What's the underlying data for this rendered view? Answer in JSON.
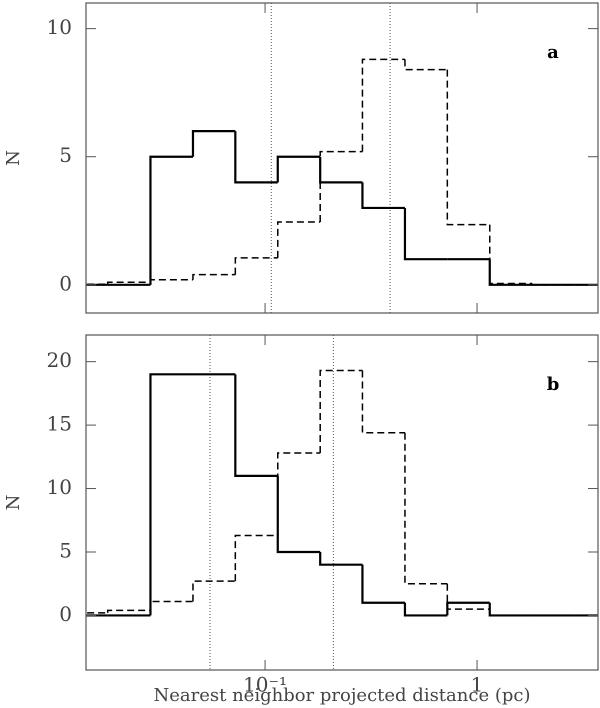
{
  "chart_data": [
    {
      "type": "histogram",
      "annotation": "a",
      "ylabel": "N",
      "log_x": true,
      "xtick_labels": false,
      "xlim": [
        0.0143,
        3.72
      ],
      "ylim": [
        -1.1,
        11
      ],
      "xticks": [
        0.1,
        1
      ],
      "yticks": [
        0,
        5,
        10
      ],
      "bins": [
        0.0114,
        0.0181,
        0.0288,
        0.0457,
        0.0724,
        0.1148,
        0.182,
        0.288,
        0.457,
        0.724,
        1.148,
        1.82,
        2.88,
        4.57
      ],
      "vlines": [
        0.107,
        0.389
      ],
      "series": [
        {
          "style": "solid",
          "color": "#000000",
          "values": [
            0,
            0,
            5,
            6,
            4,
            5,
            4,
            3,
            1,
            1,
            0,
            0,
            0
          ]
        },
        {
          "style": "dashed",
          "color": "#000000",
          "values": [
            0.02,
            0.1,
            0.2,
            0.4,
            1.05,
            2.45,
            5.2,
            8.8,
            8.4,
            2.35,
            0.05,
            0,
            0
          ]
        }
      ]
    },
    {
      "type": "histogram",
      "annotation": "b",
      "ylabel": "N",
      "xlabel": "Nearest neighbor projected distance (pc)",
      "log_x": true,
      "xtick_labels": true,
      "xlim": [
        0.0143,
        3.72
      ],
      "ylim": [
        -4.3,
        22.1
      ],
      "xticks": [
        {
          "value": 0.1,
          "label": "10⁻¹"
        },
        1
      ],
      "yticks": [
        0,
        5,
        10,
        15,
        20
      ],
      "bins": [
        0.0114,
        0.0181,
        0.0288,
        0.0457,
        0.0724,
        0.1148,
        0.182,
        0.288,
        0.457,
        0.724,
        1.148,
        1.82,
        2.88,
        4.57
      ],
      "vlines": [
        0.055,
        0.21
      ],
      "series": [
        {
          "style": "solid",
          "color": "#000000",
          "values": [
            0,
            0,
            19,
            19,
            11,
            5,
            4,
            1,
            0,
            1,
            0,
            0,
            0
          ]
        },
        {
          "style": "dashed",
          "color": "#000000",
          "values": [
            0.2,
            0.4,
            1.1,
            2.7,
            6.3,
            12.8,
            19.3,
            14.4,
            2.5,
            0.5,
            0,
            0,
            0
          ]
        }
      ]
    }
  ]
}
